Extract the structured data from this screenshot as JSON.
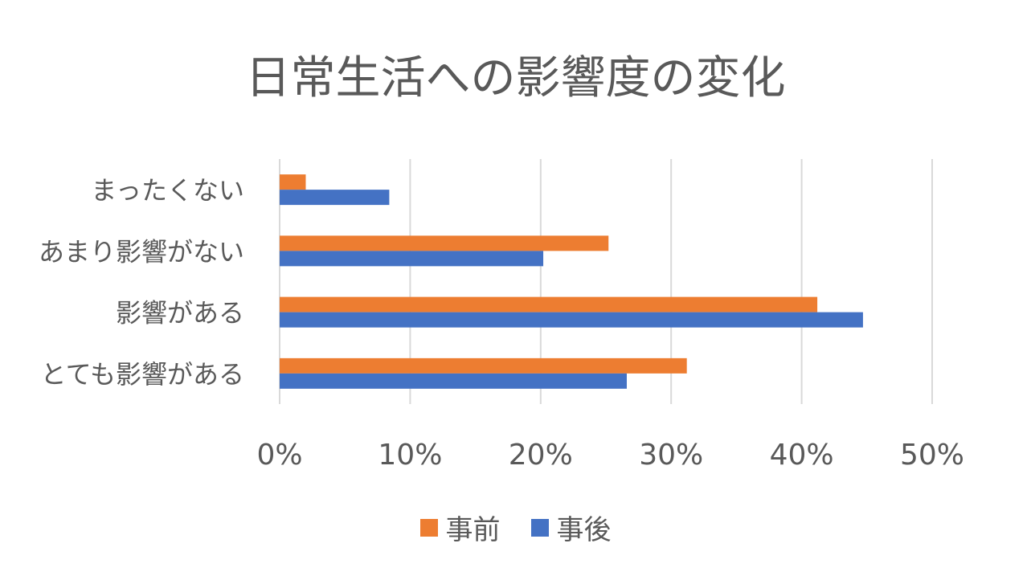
{
  "chart_data": {
    "type": "bar",
    "orientation": "horizontal",
    "title": "日常生活への影響度の変化",
    "categories": [
      "まったくない",
      "あまり影響がない",
      "影響がある",
      "とても影響がある"
    ],
    "series": [
      {
        "name": "事前",
        "color": "#ED7D31",
        "values": [
          2,
          25.2,
          41.2,
          31.2
        ]
      },
      {
        "name": "事後",
        "color": "#4472C4",
        "values": [
          8.4,
          20.2,
          44.7,
          26.6
        ]
      }
    ],
    "xlim": [
      0,
      50
    ],
    "xticks": [
      0,
      10,
      20,
      30,
      40,
      50
    ],
    "xtick_labels": [
      "0%",
      "10%",
      "20%",
      "30%",
      "40%",
      "50%"
    ],
    "grid": true,
    "legend_position": "bottom"
  }
}
